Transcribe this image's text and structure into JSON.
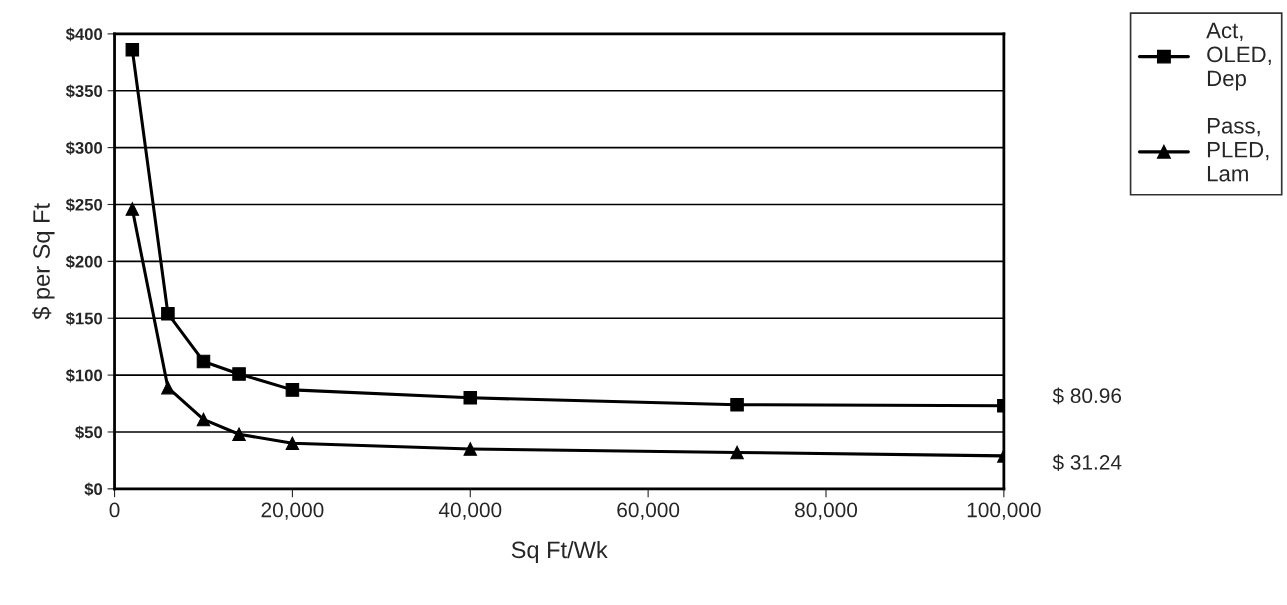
{
  "chart_data": {
    "type": "line",
    "xlabel": "Sq Ft/Wk",
    "ylabel": "$ per Sq Ft",
    "x": [
      2000,
      6000,
      10000,
      14000,
      20000,
      40000,
      70000,
      100000
    ],
    "series": [
      {
        "name": "Act,\nOLED,\nDep",
        "color": "#000000",
        "marker": "square",
        "values": [
          386,
          154,
          112,
          101,
          87,
          80,
          74,
          73
        ]
      },
      {
        "name": "Pass,\nPLED,\nLam",
        "color": "#000000",
        "marker": "triangle",
        "values": [
          246,
          89,
          61,
          48,
          40,
          35,
          32,
          29
        ]
      }
    ],
    "xlim": [
      0,
      100000
    ],
    "xticks": [
      0,
      {
        "value": 20000,
        "label": "20,000"
      },
      {
        "value": 40000,
        "label": "40,000"
      },
      {
        "value": 60000,
        "label": "60,000"
      },
      {
        "value": 80000,
        "label": "80,000"
      },
      {
        "value": 100000,
        "label": "100,000"
      }
    ],
    "ylim": [
      0,
      400
    ],
    "yticks": [
      {
        "value": 0,
        "label": "$0"
      },
      {
        "value": 50,
        "label": "$50"
      },
      {
        "value": 100,
        "label": "$100"
      },
      {
        "value": 150,
        "label": "$150"
      },
      {
        "value": 200,
        "label": "$200"
      },
      {
        "value": 250,
        "label": "$250"
      },
      {
        "value": 300,
        "label": "$300"
      },
      {
        "value": 350,
        "label": "$350"
      },
      {
        "value": 400,
        "label": "$400"
      }
    ],
    "grid": "y",
    "legend": "top right",
    "line_style": "solid",
    "annotations": [
      "$ 80.96",
      "$ 31.24"
    ]
  }
}
